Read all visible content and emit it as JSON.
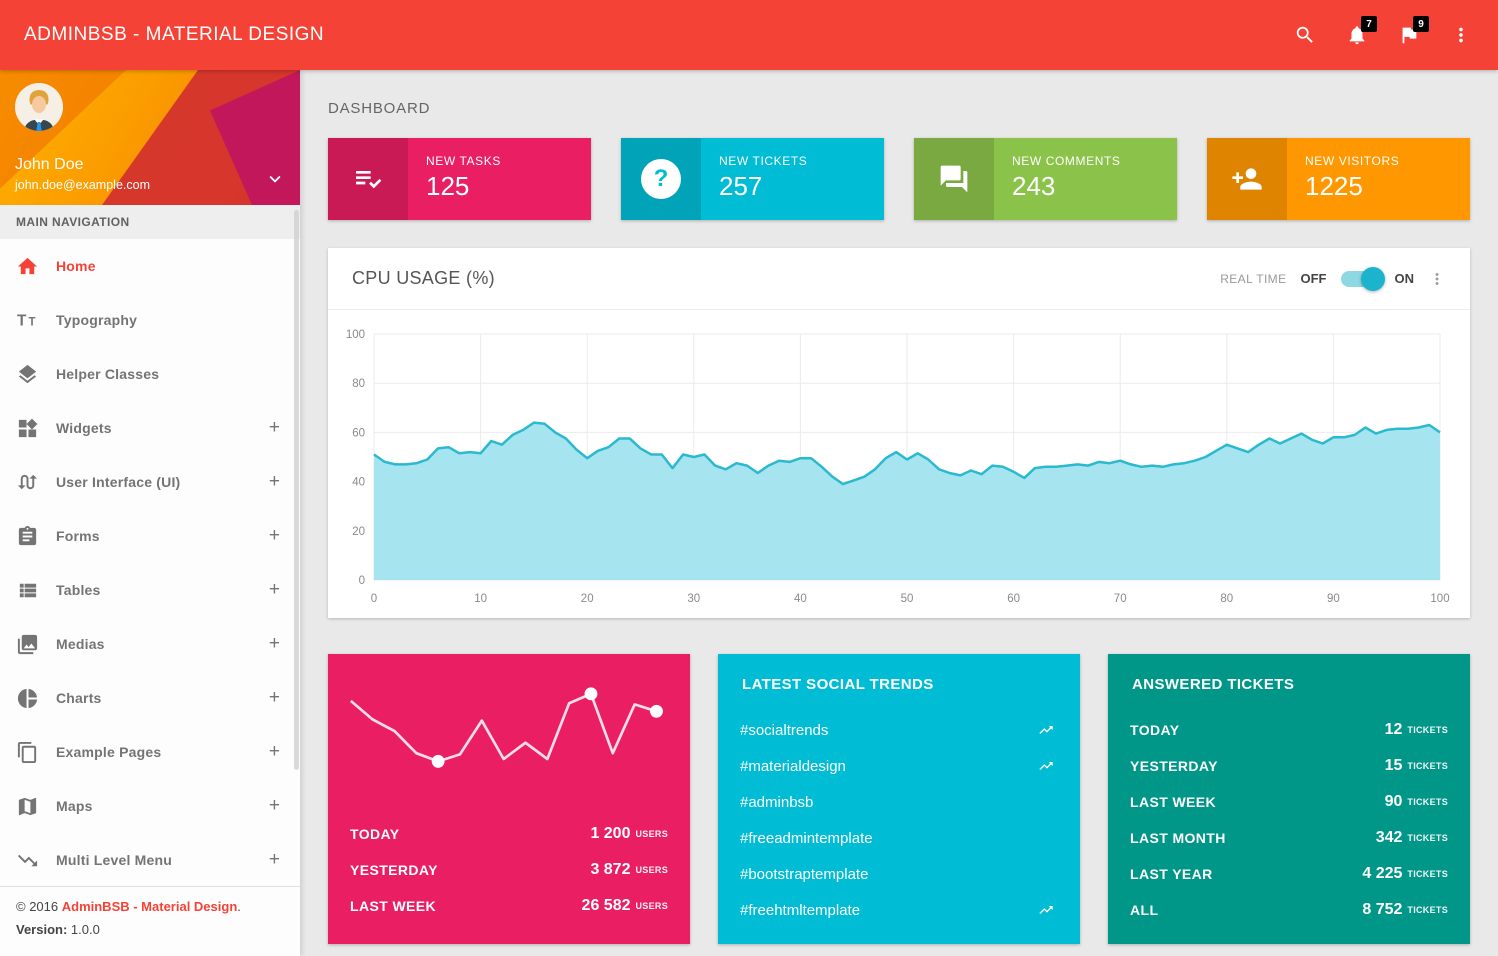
{
  "topbar": {
    "title": "ADMINBSB - MATERIAL DESIGN",
    "notifications_count": "7",
    "flags_count": "9"
  },
  "sidebar": {
    "user": {
      "name": "John Doe",
      "email": "john.doe@example.com"
    },
    "section_label": "MAIN NAVIGATION",
    "items": [
      {
        "label": "Home",
        "icon": "home",
        "active": true,
        "expandable": false
      },
      {
        "label": "Typography",
        "icon": "typography",
        "expandable": false
      },
      {
        "label": "Helper Classes",
        "icon": "layers",
        "expandable": false
      },
      {
        "label": "Widgets",
        "icon": "widgets",
        "expandable": true
      },
      {
        "label": "User Interface (UI)",
        "icon": "swap",
        "expandable": true
      },
      {
        "label": "Forms",
        "icon": "assignment",
        "expandable": true
      },
      {
        "label": "Tables",
        "icon": "table",
        "expandable": true
      },
      {
        "label": "Medias",
        "icon": "photo-library",
        "expandable": true
      },
      {
        "label": "Charts",
        "icon": "pie-chart",
        "expandable": true
      },
      {
        "label": "Example Pages",
        "icon": "copy",
        "expandable": true
      },
      {
        "label": "Maps",
        "icon": "map",
        "expandable": true
      },
      {
        "label": "Multi Level Menu",
        "icon": "trending-down",
        "expandable": true
      }
    ],
    "footer": {
      "copyright_prefix": "© 2016 ",
      "copyright_link": "AdminBSB - Material Design",
      "copyright_suffix": ".",
      "version_label": "Version:",
      "version_value": "1.0.0"
    }
  },
  "page": {
    "heading": "DASHBOARD"
  },
  "info_boxes": [
    {
      "label": "NEW TASKS",
      "value": "125",
      "color": "#E91E63",
      "icon": "playlist-check"
    },
    {
      "label": "NEW TICKETS",
      "value": "257",
      "color": "#00BCD4",
      "icon": "help"
    },
    {
      "label": "NEW COMMENTS",
      "value": "243",
      "color": "#8BC34A",
      "icon": "forum"
    },
    {
      "label": "NEW VISITORS",
      "value": "1225",
      "color": "#FF9800",
      "icon": "person-add"
    }
  ],
  "cpu_card": {
    "title": "CPU USAGE (%)",
    "real_time_label": "REAL TIME",
    "off_label": "OFF",
    "on_label": "ON",
    "toggle_on": true
  },
  "chart_data": [
    {
      "type": "area",
      "name": "cpu-usage",
      "title": "CPU USAGE (%)",
      "xlabel": "",
      "ylabel": "",
      "xlim": [
        0,
        100
      ],
      "ylim": [
        0,
        100
      ],
      "x_ticks": [
        0,
        10,
        20,
        30,
        40,
        50,
        60,
        70,
        80,
        90,
        100
      ],
      "y_ticks": [
        0,
        20,
        40,
        60,
        80,
        100
      ],
      "grid": true,
      "line_color": "#2bb9cf",
      "fill_color": "#a6e4ef",
      "values": [
        51,
        48,
        47,
        47,
        47.5,
        49,
        53.5,
        54,
        51.5,
        52,
        51.5,
        56.5,
        55,
        59,
        61,
        64,
        63.5,
        60,
        57.5,
        53,
        49.5,
        52.5,
        54,
        57.5,
        57.5,
        53.5,
        51,
        51,
        45.5,
        51,
        50,
        51,
        46.5,
        45,
        47.5,
        46.5,
        43.5,
        46.5,
        48.5,
        48,
        49.5,
        49.5,
        46,
        42,
        39,
        40.5,
        42,
        45,
        49.5,
        52,
        49,
        51.5,
        49,
        45,
        43.5,
        42.5,
        44.5,
        43,
        46.5,
        46,
        44,
        41.5,
        45.5,
        46,
        46,
        46.5,
        47,
        46.5,
        48,
        47.5,
        48.5,
        47,
        46,
        46.5,
        46,
        47,
        47.5,
        48.5,
        50,
        52.5,
        55,
        53.5,
        52,
        55,
        57.5,
        55.5,
        57.5,
        59.5,
        57,
        55.5,
        58,
        58,
        59,
        62,
        59.5,
        61,
        61.5,
        61.5,
        62,
        63,
        60
      ]
    },
    {
      "type": "line",
      "name": "users-sparkline",
      "title": "",
      "line_color": "#ffffff",
      "values": [
        81,
        65,
        55,
        36,
        29,
        35,
        64,
        31,
        45,
        31,
        79,
        87,
        36,
        78,
        72
      ],
      "dot_indices": [
        4,
        11,
        14
      ]
    }
  ],
  "users_card": {
    "color": "#E91E63",
    "rows": [
      {
        "label": "TODAY",
        "value": "1 200",
        "unit": "USERS"
      },
      {
        "label": "YESTERDAY",
        "value": "3 872",
        "unit": "USERS"
      },
      {
        "label": "LAST WEEK",
        "value": "26 582",
        "unit": "USERS"
      }
    ]
  },
  "trends_card": {
    "color": "#00BCD4",
    "title": "LATEST SOCIAL TRENDS",
    "items": [
      {
        "tag": "#socialtrends",
        "trending": true
      },
      {
        "tag": "#materialdesign",
        "trending": true
      },
      {
        "tag": "#adminbsb",
        "trending": false
      },
      {
        "tag": "#freeadmintemplate",
        "trending": false
      },
      {
        "tag": "#bootstraptemplate",
        "trending": false
      },
      {
        "tag": "#freehtmltemplate",
        "trending": true
      }
    ]
  },
  "tickets_card": {
    "color": "#009688",
    "title": "ANSWERED TICKETS",
    "rows": [
      {
        "label": "TODAY",
        "value": "12",
        "unit": "TICKETS"
      },
      {
        "label": "YESTERDAY",
        "value": "15",
        "unit": "TICKETS"
      },
      {
        "label": "LAST WEEK",
        "value": "90",
        "unit": "TICKETS"
      },
      {
        "label": "LAST MONTH",
        "value": "342",
        "unit": "TICKETS"
      },
      {
        "label": "LAST YEAR",
        "value": "4 225",
        "unit": "TICKETS"
      },
      {
        "label": "ALL",
        "value": "8 752",
        "unit": "TICKETS"
      }
    ]
  }
}
